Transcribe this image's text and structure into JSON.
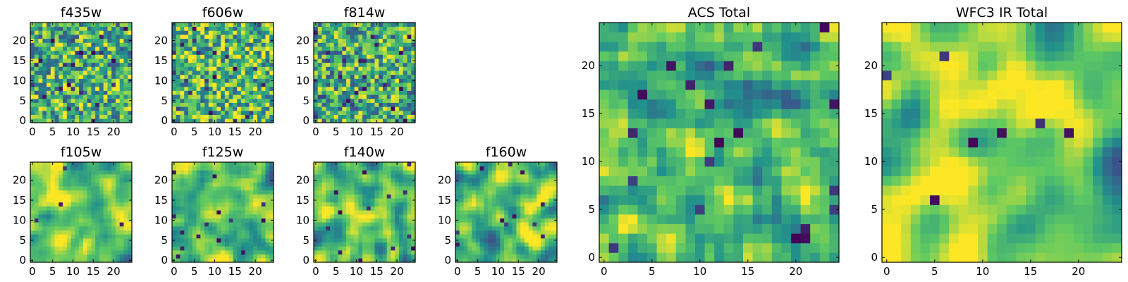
{
  "colormap": {
    "name": "viridis",
    "stops": [
      "#440154",
      "#3b528b",
      "#21918c",
      "#5ec962",
      "#fde725"
    ]
  },
  "chart_data": [
    {
      "type": "heatmap",
      "title": "f435w",
      "grid": [
        25,
        25
      ],
      "xlim": [
        0,
        24
      ],
      "ylim": [
        0,
        24
      ],
      "xticks": [
        "0",
        "5",
        "10",
        "15",
        "20"
      ],
      "yticks": [
        "0",
        "5",
        "10",
        "15",
        "20"
      ],
      "texture": "noise",
      "smoothness": 0,
      "seed": 11,
      "mean": 0.65
    },
    {
      "type": "heatmap",
      "title": "f606w",
      "grid": [
        25,
        25
      ],
      "xlim": [
        0,
        24
      ],
      "ylim": [
        0,
        24
      ],
      "xticks": [
        "0",
        "5",
        "10",
        "15",
        "20"
      ],
      "yticks": [
        "0",
        "5",
        "10",
        "15",
        "20"
      ],
      "texture": "noise",
      "smoothness": 0,
      "seed": 23,
      "mean": 0.68
    },
    {
      "type": "heatmap",
      "title": "f814w",
      "grid": [
        25,
        25
      ],
      "xlim": [
        0,
        24
      ],
      "ylim": [
        0,
        24
      ],
      "xticks": [
        "0",
        "5",
        "10",
        "15",
        "20"
      ],
      "yticks": [
        "0",
        "5",
        "10",
        "15",
        "20"
      ],
      "texture": "noise",
      "smoothness": 0,
      "seed": 37,
      "mean": 0.62
    },
    {
      "type": "heatmap",
      "title": "f105w",
      "grid": [
        25,
        25
      ],
      "xlim": [
        0,
        24
      ],
      "ylim": [
        0,
        24
      ],
      "xticks": [
        "0",
        "5",
        "10",
        "15",
        "20"
      ],
      "yticks": [
        "0",
        "5",
        "10",
        "15",
        "20"
      ],
      "texture": "smooth",
      "smoothness": 2,
      "seed": 41,
      "mean": 0.72
    },
    {
      "type": "heatmap",
      "title": "f125w",
      "grid": [
        25,
        25
      ],
      "xlim": [
        0,
        24
      ],
      "ylim": [
        0,
        24
      ],
      "xticks": [
        "0",
        "5",
        "10",
        "15",
        "20"
      ],
      "yticks": [
        "0",
        "5",
        "10",
        "15",
        "20"
      ],
      "texture": "smooth",
      "smoothness": 2,
      "seed": 53,
      "mean": 0.7
    },
    {
      "type": "heatmap",
      "title": "f140w",
      "grid": [
        25,
        25
      ],
      "xlim": [
        0,
        24
      ],
      "ylim": [
        0,
        24
      ],
      "xticks": [
        "0",
        "5",
        "10",
        "15",
        "20"
      ],
      "yticks": [
        "0",
        "5",
        "10",
        "15",
        "20"
      ],
      "texture": "smooth",
      "smoothness": 2,
      "seed": 67,
      "mean": 0.72
    },
    {
      "type": "heatmap",
      "title": "f160w",
      "grid": [
        25,
        25
      ],
      "xlim": [
        0,
        24
      ],
      "ylim": [
        0,
        24
      ],
      "xticks": [
        "0",
        "5",
        "10",
        "15",
        "20"
      ],
      "yticks": [
        "0",
        "5",
        "10",
        "15",
        "20"
      ],
      "texture": "smooth",
      "smoothness": 2,
      "seed": 79,
      "mean": 0.7
    },
    {
      "type": "heatmap",
      "title": "ACS Total",
      "grid": [
        25,
        25
      ],
      "xlim": [
        0,
        24
      ],
      "ylim": [
        0,
        24
      ],
      "xticks": [
        "0",
        "5",
        "10",
        "15",
        "20"
      ],
      "yticks": [
        "0",
        "5",
        "10",
        "15",
        "20"
      ],
      "texture": "noise",
      "smoothness": 1,
      "seed": 97,
      "mean": 0.66
    },
    {
      "type": "heatmap",
      "title": "WFC3 IR Total",
      "grid": [
        25,
        25
      ],
      "xlim": [
        0,
        24
      ],
      "ylim": [
        0,
        24
      ],
      "xticks": [
        "0",
        "5",
        "10",
        "15",
        "20"
      ],
      "yticks": [
        "0",
        "5",
        "10",
        "15",
        "20"
      ],
      "texture": "smooth",
      "smoothness": 3,
      "seed": 113,
      "mean": 0.7
    }
  ]
}
